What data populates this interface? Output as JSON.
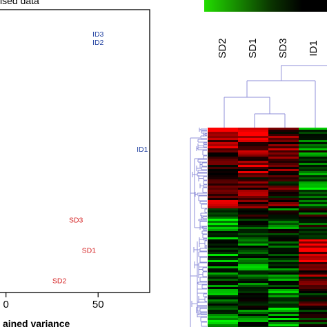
{
  "colors": {
    "group_sd": "#d62728",
    "group_id": "#1f3fa0",
    "dendrogram": "#8f8fd8",
    "heat_high": "#ff0000",
    "heat_low": "#00ff00",
    "heat_mid": "#000000"
  },
  "chart_data": [
    {
      "type": "scatter",
      "title": "ised data",
      "xlabel": "ained variance",
      "ylabel": "",
      "xlim": [
        -4,
        78
      ],
      "ylim": [
        -8,
        20
      ],
      "x_ticks": [
        "0",
        "50"
      ],
      "x_tick_values": [
        0,
        50
      ],
      "grid": false,
      "points": [
        {
          "label": "ID3",
          "x": 50,
          "y": 17.6,
          "group": "ID"
        },
        {
          "label": "ID2",
          "x": 50,
          "y": 16.8,
          "group": "ID"
        },
        {
          "label": "ID1",
          "x": 74,
          "y": 6.2,
          "group": "ID"
        },
        {
          "label": "SD3",
          "x": 38,
          "y": -0.8,
          "group": "SD"
        },
        {
          "label": "SD1",
          "x": 45,
          "y": -3.8,
          "group": "SD"
        },
        {
          "label": "SD2",
          "x": 29,
          "y": -6.8,
          "group": "SD"
        }
      ]
    },
    {
      "type": "heatmap",
      "title": "",
      "columns": [
        "SD2",
        "SD1",
        "SD3",
        "ID1"
      ],
      "color_scale": [
        "green",
        "black",
        "red"
      ],
      "row_dendrogram": true,
      "column_dendrogram": true,
      "column_clusters": [
        [
          "SD2"
        ],
        [
          "SD1",
          "SD3"
        ],
        [
          "ID1"
        ]
      ]
    }
  ]
}
